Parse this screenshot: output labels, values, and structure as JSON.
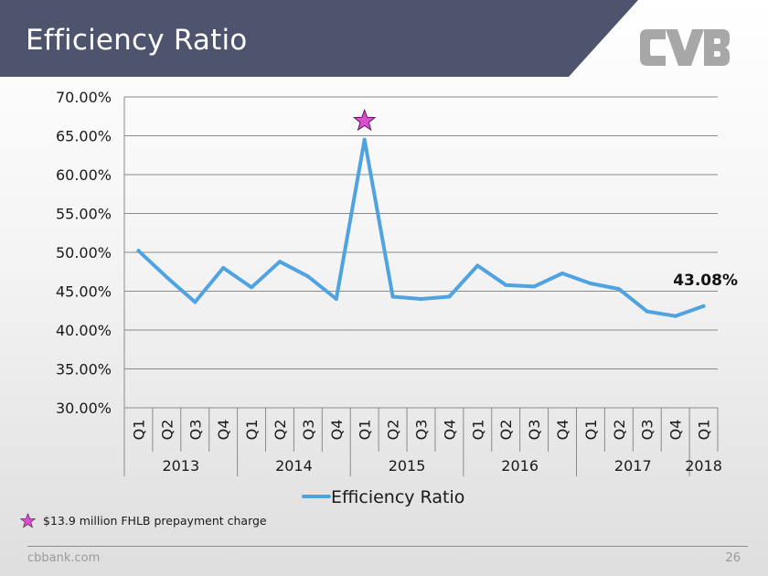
{
  "slide": {
    "title": "Efficiency Ratio",
    "footnote": "$13.9 million FHLB prepayment charge",
    "website": "cbbank.com",
    "page_number": "26"
  },
  "colors": {
    "header": "#4e546e",
    "line": "#4fa3e0",
    "star": "#d94fd2",
    "logo": "#a7a7a7"
  },
  "icons": {
    "marker": "star-icon",
    "logo": "cvb-logo"
  },
  "chart_data": {
    "type": "line",
    "title": "",
    "xlabel": "",
    "ylabel": "",
    "ylim": [
      30,
      70
    ],
    "yticks": [
      "30.00%",
      "35.00%",
      "40.00%",
      "45.00%",
      "50.00%",
      "55.00%",
      "60.00%",
      "65.00%",
      "70.00%"
    ],
    "grid": "horizontal",
    "legend": "bottom",
    "categories": [
      "Q1",
      "Q2",
      "Q3",
      "Q4",
      "Q1",
      "Q2",
      "Q3",
      "Q4",
      "Q1",
      "Q2",
      "Q3",
      "Q4",
      "Q1",
      "Q2",
      "Q3",
      "Q4",
      "Q1",
      "Q2",
      "Q3",
      "Q4",
      "Q1"
    ],
    "years": [
      {
        "label": "2013",
        "quarters": 4
      },
      {
        "label": "2014",
        "quarters": 4
      },
      {
        "label": "2015",
        "quarters": 4
      },
      {
        "label": "2016",
        "quarters": 4
      },
      {
        "label": "2017",
        "quarters": 4
      },
      {
        "label": "2018",
        "quarters": 1
      }
    ],
    "series": [
      {
        "name": "Efficiency Ratio",
        "values": [
          50.2,
          46.8,
          43.6,
          48.0,
          45.5,
          48.8,
          46.9,
          44.0,
          64.5,
          44.3,
          44.0,
          44.3,
          48.3,
          45.8,
          45.6,
          47.3,
          46.0,
          45.3,
          42.4,
          41.8,
          43.08
        ]
      }
    ],
    "annotations": [
      {
        "type": "data-label",
        "index": 20,
        "text": "43.08%"
      },
      {
        "type": "star-marker",
        "index": 8,
        "y": 66.9
      }
    ]
  }
}
